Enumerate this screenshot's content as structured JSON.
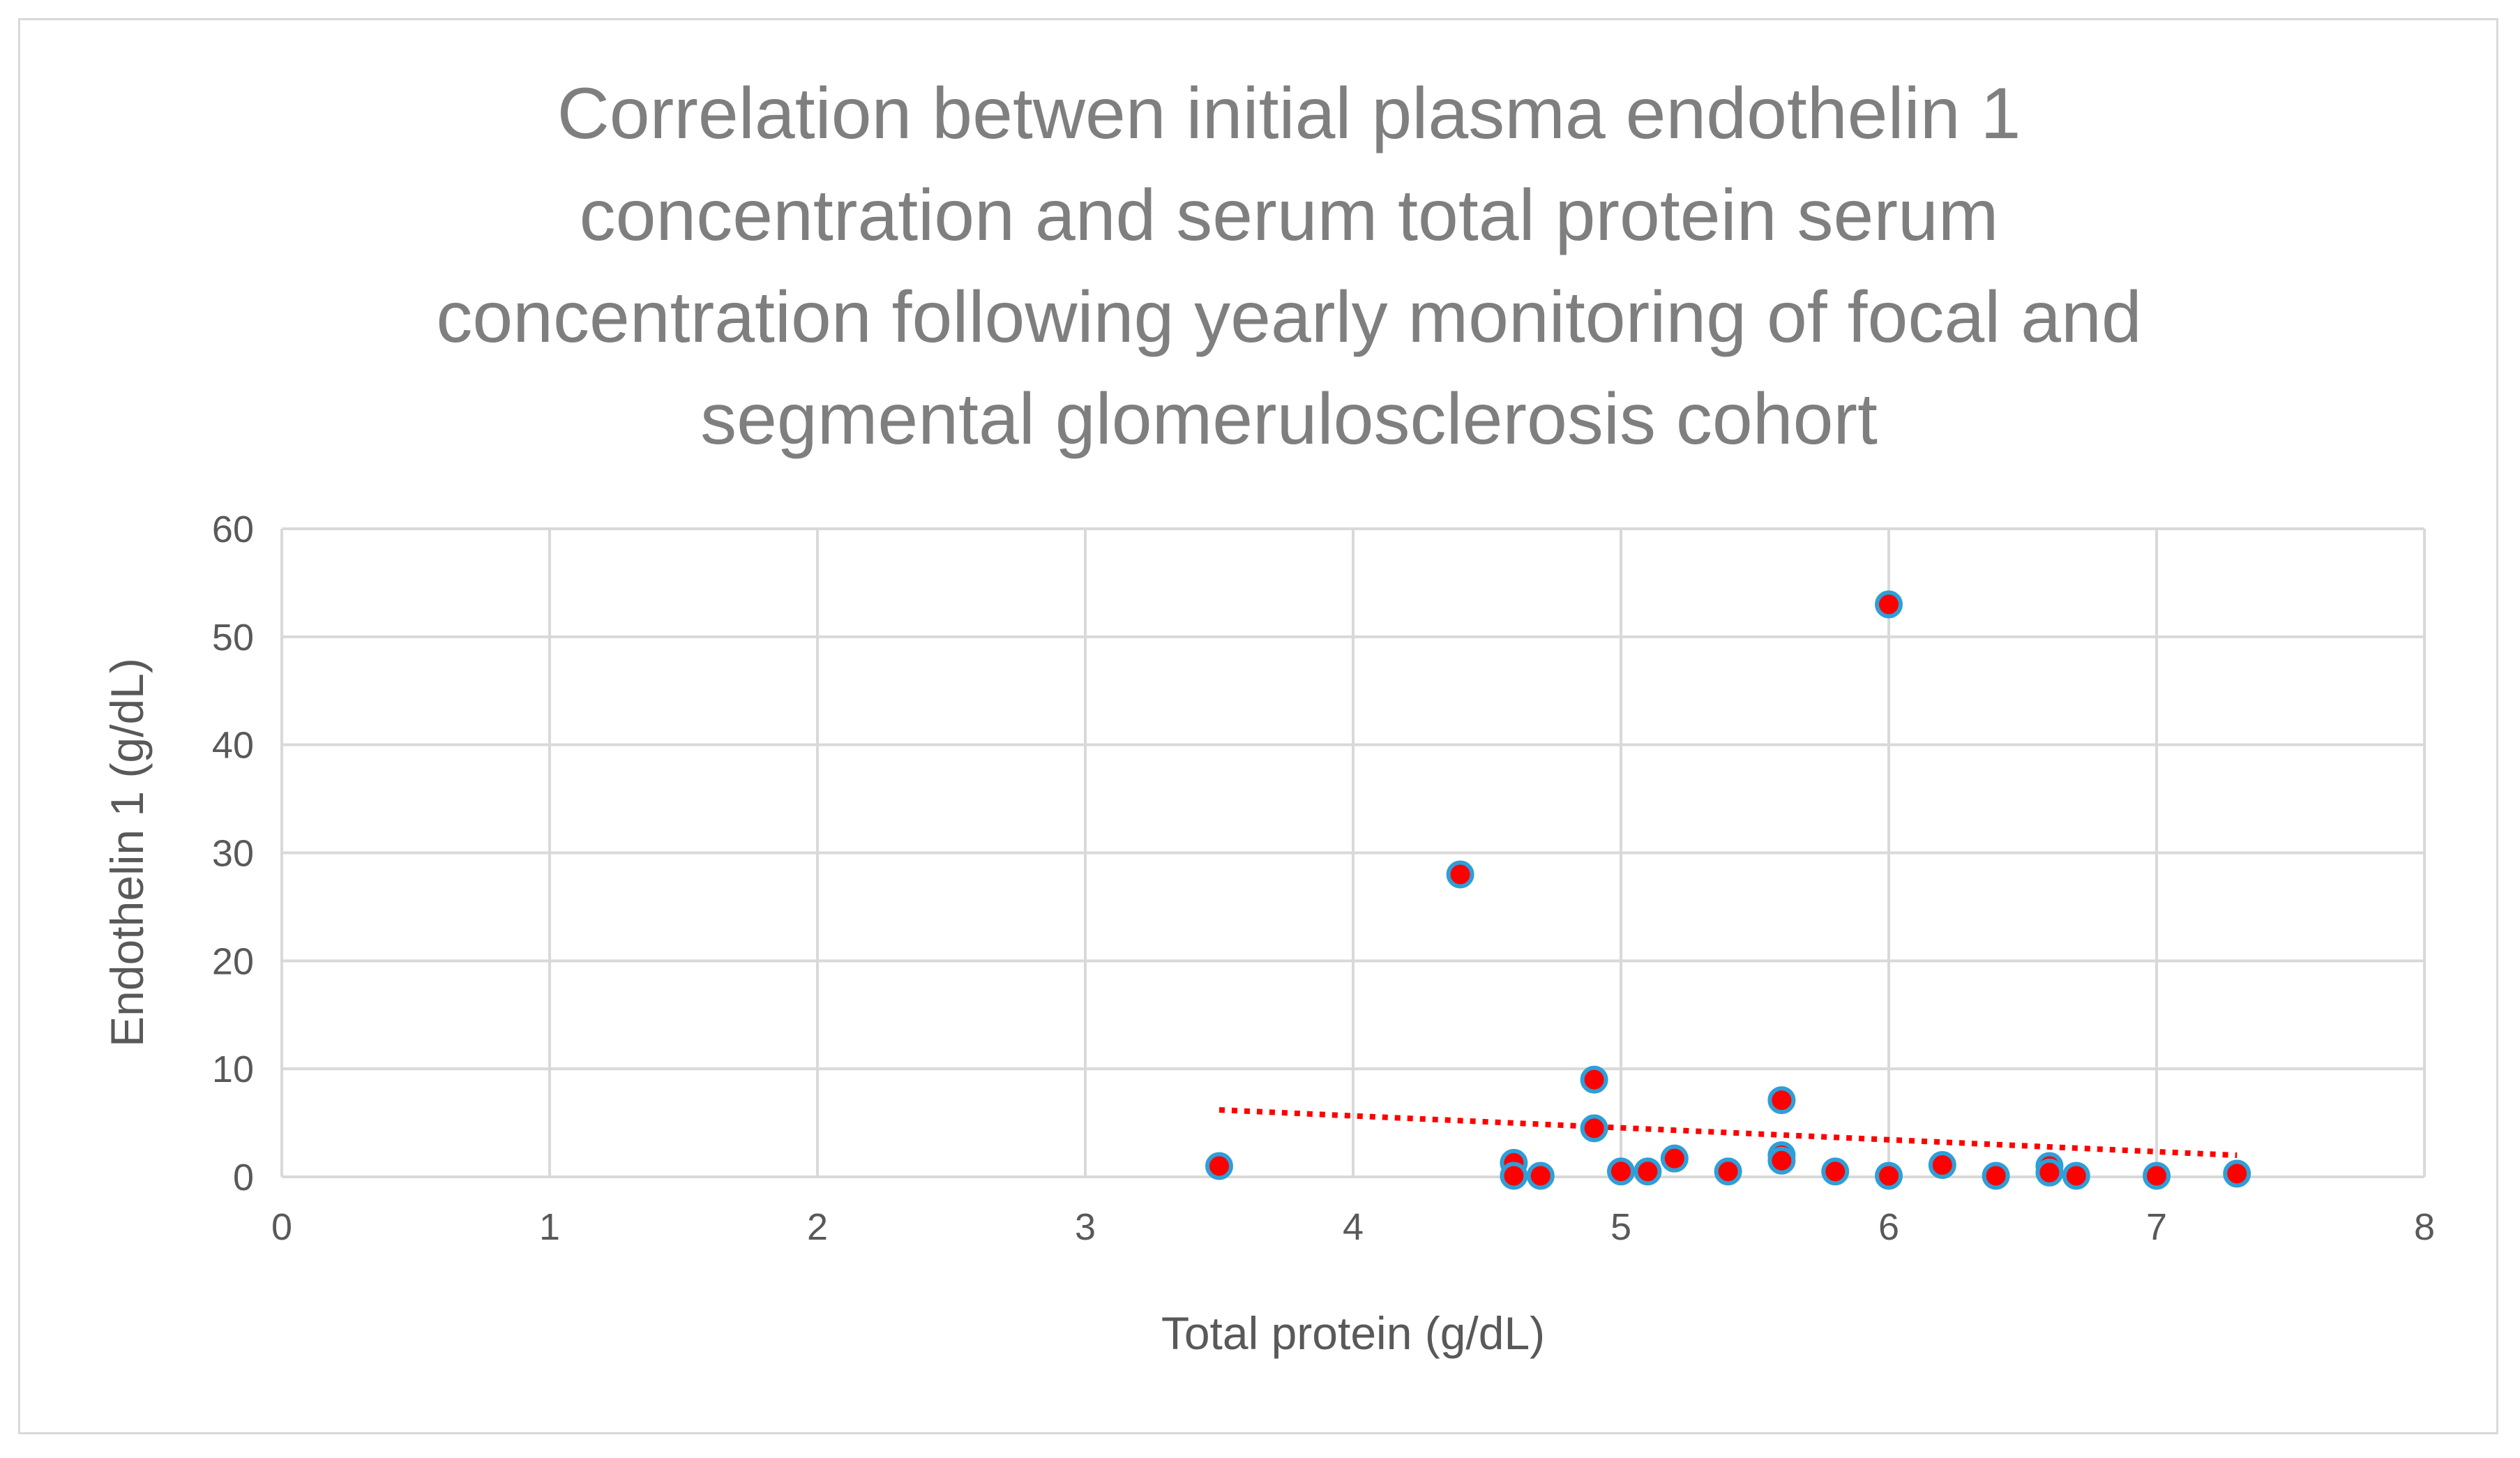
{
  "chart_data": {
    "type": "scatter",
    "title": "Correlation betwen initial plasma endothelin 1 concentration and serum total protein serum concentration following yearly monitoring of focal and segmental glomerulosclerosis cohort",
    "title_lines": [
      "Correlation betwen initial plasma endothelin 1",
      "concentration and serum total protein serum",
      "concentration following yearly monitoring of focal and",
      "segmental glomerulosclerosis cohort"
    ],
    "xlabel": "Total protein (g/dL)",
    "ylabel": "Endothelin 1 (g/dL)",
    "xlim": [
      0,
      8
    ],
    "ylim": [
      0,
      60
    ],
    "x_ticks": [
      0,
      1,
      2,
      3,
      4,
      5,
      6,
      7,
      8
    ],
    "y_ticks": [
      0,
      10,
      20,
      30,
      40,
      50,
      60
    ],
    "grid": true,
    "legend": "none",
    "series": [
      {
        "name": "Endothelin 1",
        "marker_fill": "#ff0000",
        "marker_edge": "#2e9fd8",
        "points": [
          {
            "x": 3.5,
            "y": 1.0
          },
          {
            "x": 4.4,
            "y": 28.0
          },
          {
            "x": 4.6,
            "y": 1.3
          },
          {
            "x": 4.6,
            "y": 0.1
          },
          {
            "x": 4.7,
            "y": 0.1
          },
          {
            "x": 4.9,
            "y": 9.0
          },
          {
            "x": 4.9,
            "y": 4.5
          },
          {
            "x": 5.0,
            "y": 0.5
          },
          {
            "x": 5.1,
            "y": 0.5
          },
          {
            "x": 5.2,
            "y": 1.7
          },
          {
            "x": 5.4,
            "y": 0.5
          },
          {
            "x": 5.6,
            "y": 7.1
          },
          {
            "x": 5.6,
            "y": 2.0
          },
          {
            "x": 5.6,
            "y": 1.5
          },
          {
            "x": 5.8,
            "y": 0.5
          },
          {
            "x": 6.0,
            "y": 53.0
          },
          {
            "x": 6.0,
            "y": 0.1
          },
          {
            "x": 6.2,
            "y": 1.1
          },
          {
            "x": 6.4,
            "y": 0.1
          },
          {
            "x": 6.6,
            "y": 1.0
          },
          {
            "x": 6.6,
            "y": 0.4
          },
          {
            "x": 6.7,
            "y": 0.1
          },
          {
            "x": 7.0,
            "y": 0.1
          },
          {
            "x": 7.3,
            "y": 0.3
          }
        ]
      }
    ],
    "trendline": {
      "type": "linear",
      "style": "dotted",
      "color": "#ff0000",
      "start": {
        "x": 3.5,
        "y": 6.2
      },
      "end": {
        "x": 7.3,
        "y": 2.0
      }
    },
    "colors": {
      "gridline": "#d9d9d9",
      "title": "#7f7f7f",
      "text": "#595959",
      "frame": "#d9d9d9"
    }
  }
}
